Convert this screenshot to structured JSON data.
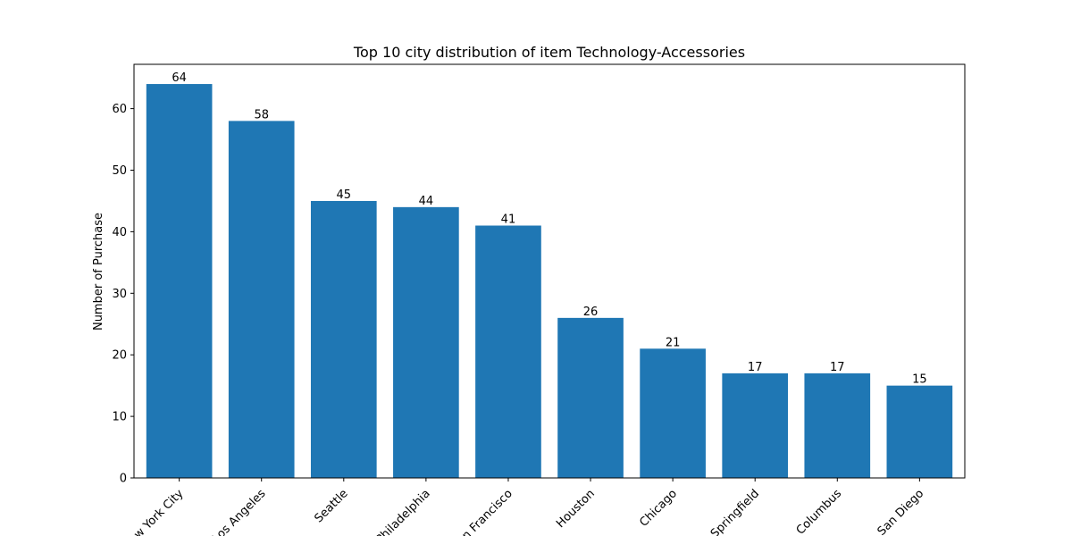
{
  "chart_data": {
    "type": "bar",
    "title": "Top 10 city distribution of item Technology-Accessories",
    "xlabel": "",
    "ylabel": "Number of Purchase",
    "categories": [
      "New York City",
      "Los Angeles",
      "Seattle",
      "Philadelphia",
      "San Francisco",
      "Houston",
      "Chicago",
      "Springfield",
      "Columbus",
      "San Diego"
    ],
    "values": [
      64,
      58,
      45,
      44,
      41,
      26,
      21,
      17,
      17,
      15
    ],
    "data_labels": [
      "64",
      "58",
      "45",
      "44",
      "41",
      "26",
      "21",
      "17",
      "17",
      "15"
    ],
    "yticks": [
      0,
      10,
      20,
      30,
      40,
      50,
      60
    ],
    "ytick_labels": [
      "0",
      "10",
      "20",
      "30",
      "40",
      "50",
      "60"
    ],
    "ylim": [
      0,
      67.2
    ],
    "grid": false,
    "legend": "none",
    "bar_color": "#1f77b4"
  }
}
